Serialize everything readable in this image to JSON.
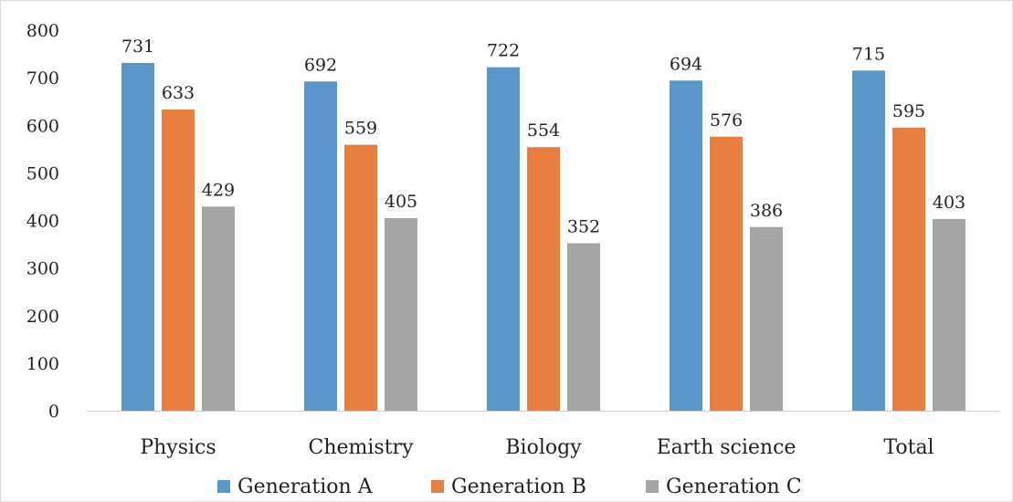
{
  "chart_data": {
    "type": "bar",
    "categories": [
      "Physics",
      "Chemistry",
      "Biology",
      "Earth science",
      "Total"
    ],
    "series": [
      {
        "name": "Generation A",
        "values": [
          731,
          692,
          722,
          694,
          715
        ],
        "color": "#5b96c9"
      },
      {
        "name": "Generation B",
        "values": [
          633,
          559,
          554,
          576,
          595
        ],
        "color": "#e57e3f"
      },
      {
        "name": "Generation C",
        "values": [
          429,
          405,
          352,
          386,
          403
        ],
        "color": "#a5a5a5"
      }
    ],
    "ylim": [
      0,
      800
    ],
    "yticks": [
      0,
      100,
      200,
      300,
      400,
      500,
      600,
      700,
      800
    ],
    "grid": false,
    "legend": "bottom",
    "data_labels": true
  }
}
